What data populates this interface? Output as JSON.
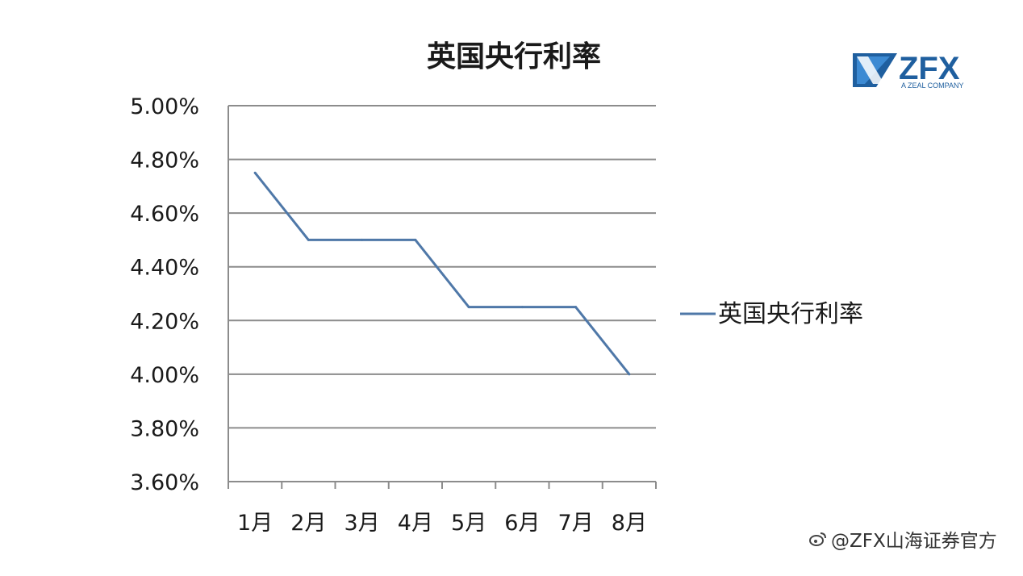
{
  "chart_data": {
    "type": "line",
    "title": "英国央行利率",
    "categories": [
      "1月",
      "2月",
      "3月",
      "4月",
      "5月",
      "6月",
      "7月",
      "8月"
    ],
    "series": [
      {
        "name": "英国央行利率",
        "values": [
          4.75,
          4.5,
          4.5,
          4.5,
          4.25,
          4.25,
          4.25,
          4.0
        ]
      }
    ],
    "y_tick_labels": [
      "5.00%",
      "4.80%",
      "4.60%",
      "4.40%",
      "4.20%",
      "4.00%",
      "3.80%",
      "3.60%"
    ],
    "ylim": [
      3.6,
      5.0
    ],
    "y_step": 0.2,
    "grid": true,
    "legend_position": "right",
    "series_color": "#4f78a8",
    "grid_color": "#8c8c8c"
  },
  "logo": {
    "name": "ZFX",
    "tagline": "A ZEAL COMPANY",
    "color": "#1f5f9f",
    "accent": "#2f7fd0"
  },
  "watermark": {
    "text": "@ZFX山海证券官方",
    "icon": "weibo-icon"
  }
}
